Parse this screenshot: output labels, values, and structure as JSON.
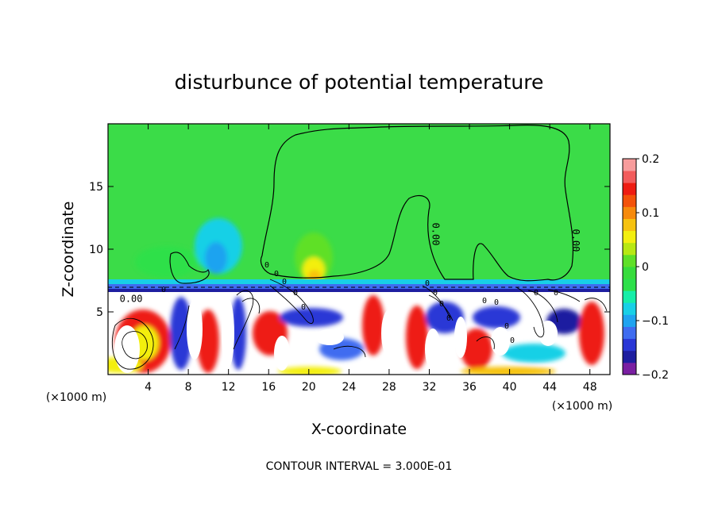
{
  "chart_data": {
    "type": "heatmap",
    "title": "disturbunce of potential temperature",
    "xlabel": "X-coordinate",
    "ylabel": "Z-coordinate",
    "x_unit_left": "(×1000 m)",
    "x_unit_right": "(×1000 m)",
    "xlim": [
      0,
      50
    ],
    "ylim": [
      0,
      20
    ],
    "xticks": [
      4,
      8,
      12,
      16,
      20,
      24,
      28,
      32,
      36,
      40,
      44,
      48
    ],
    "yticks": [
      5,
      10,
      15
    ],
    "footer": "CONTOUR INTERVAL = 3.000E-01",
    "contour_labels": [
      {
        "text": "0.00",
        "x": 2.3,
        "y": 5.8,
        "rotate": 0
      },
      {
        "text": "0.00",
        "x": 32.3,
        "y": 11.2,
        "rotate": 90
      },
      {
        "text": "0.00",
        "x": 46.3,
        "y": 10.7,
        "rotate": 90
      }
    ],
    "colorbar": {
      "min": -0.2,
      "max": 0.2,
      "ticks": [
        0.2,
        0.1,
        0,
        -0.1,
        -0.2
      ],
      "colors": [
        "#7a1fa2",
        "#1e1ea0",
        "#2a37d6",
        "#3f6cf0",
        "#1fa3f0",
        "#18d0e6",
        "#16eea8",
        "#2de04a",
        "#37dc3c",
        "#5fe028",
        "#b8e813",
        "#f3ef10",
        "#f6c210",
        "#f68a0c",
        "#f3520a",
        "#ee1c12",
        "#f25c5c",
        "#f79c9c"
      ]
    },
    "background_color": "#3bdc48"
  }
}
